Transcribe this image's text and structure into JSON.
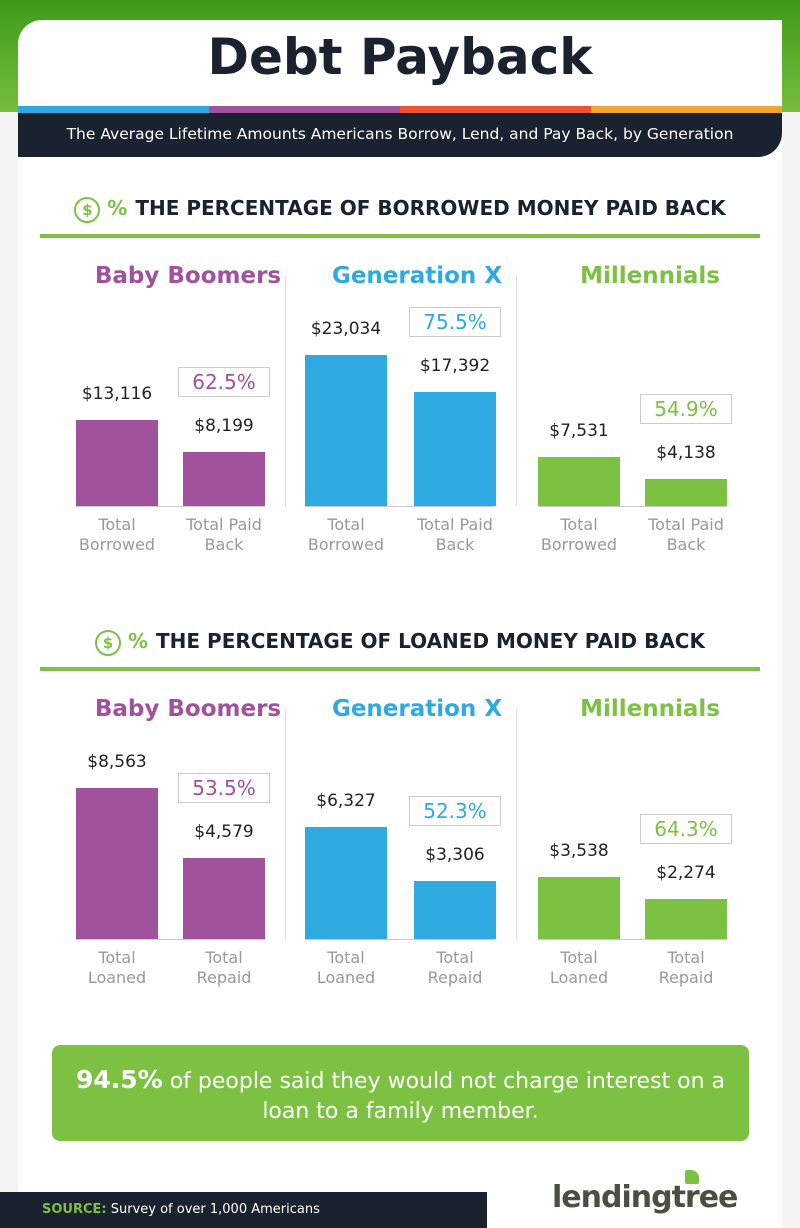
{
  "header": {
    "title": "Debt Payback",
    "subtitle": "The Average Lifetime Amounts Americans Borrow, Lend, and Pay Back, by Generation",
    "stripe_colors": [
      "#2eaae1",
      "#a0529d",
      "#ee5330",
      "#f4a431"
    ]
  },
  "colors": {
    "Baby Boomers": "#a0529d",
    "Generation X": "#2eaae1",
    "Millennials": "#7dc142"
  },
  "chart_data": [
    {
      "type": "bar",
      "title": "THE PERCENTAGE OF BORROWED MONEY PAID BACK",
      "icon": "$",
      "icon_suffix": "%",
      "categories": [
        "Total Borrowed",
        "Total Paid Back"
      ],
      "groups": [
        {
          "name": "Baby Boomers",
          "values": [
            13116
          ],
          "labels": [
            "$13,116",
            "$8,199"
          ],
          "vals": [
            13116,
            8199
          ],
          "percent": "62.5%"
        },
        {
          "name": "Generation X",
          "labels": [
            "$23,034",
            "$17,392"
          ],
          "vals": [
            23034,
            17392
          ],
          "percent": "75.5%"
        },
        {
          "name": "Millennials",
          "labels": [
            "$7,531",
            "$4,138"
          ],
          "vals": [
            7531,
            4138
          ],
          "percent": "54.9%"
        }
      ],
      "cat_labels": [
        [
          "Total",
          "Borrowed"
        ],
        [
          "Total Paid",
          "Back"
        ]
      ]
    },
    {
      "type": "bar",
      "title": "THE PERCENTAGE OF LOANED MONEY PAID BACK",
      "icon": "$",
      "icon_suffix": "%",
      "categories": [
        "Total Loaned",
        "Total Repaid"
      ],
      "groups": [
        {
          "name": "Baby Boomers",
          "labels": [
            "$8,563",
            "$4,579"
          ],
          "vals": [
            8563,
            4579
          ],
          "percent": "53.5%"
        },
        {
          "name": "Generation X",
          "labels": [
            "$6,327",
            "$3,306"
          ],
          "vals": [
            6327,
            3306
          ],
          "percent": "52.3%"
        },
        {
          "name": "Millennials",
          "labels": [
            "$3,538",
            "$2,274"
          ],
          "vals": [
            3538,
            2274
          ],
          "percent": "64.3%"
        }
      ],
      "cat_labels": [
        [
          "Total",
          "Loaned"
        ],
        [
          "Total",
          "Repaid"
        ]
      ]
    }
  ],
  "callout": {
    "stat": "94.5%",
    "text": " of people said they would not charge interest on a loan to a family member."
  },
  "footer": {
    "source_label": "SOURCE:",
    "source_text": " Survey of over 1,000 Americans",
    "logo": "lendingtree"
  }
}
